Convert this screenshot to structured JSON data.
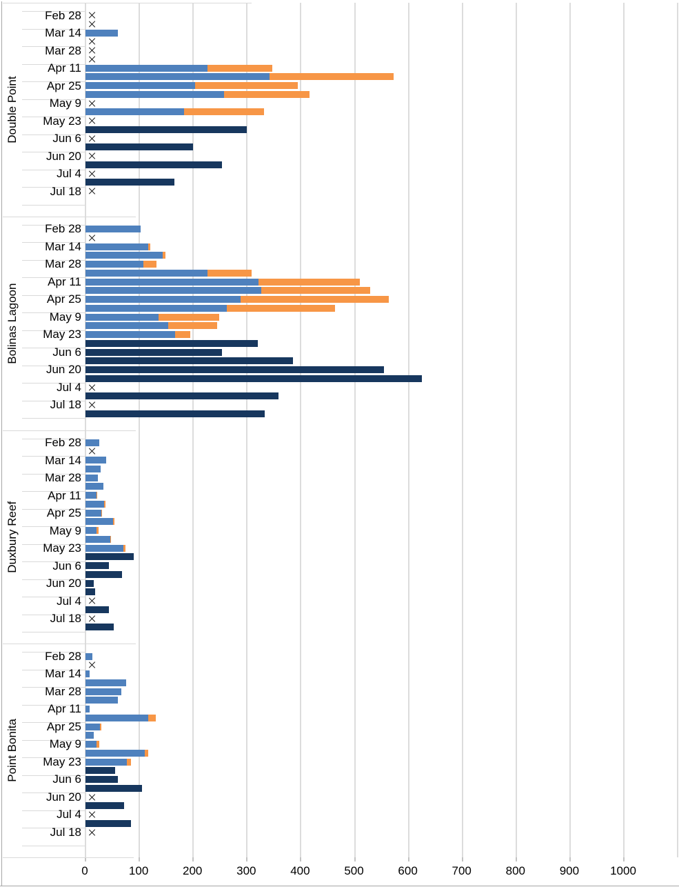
{
  "chart_data": {
    "type": "bar",
    "orientation": "horizontal",
    "stacked": true,
    "title": "",
    "legend": "none",
    "grid": "vertical",
    "x_axis": {
      "min": 0,
      "max": 1100,
      "tick_step": 100,
      "tick_labels": [
        "0",
        "100",
        "200",
        "300",
        "400",
        "500",
        "600",
        "700",
        "800",
        "900",
        "1000"
      ]
    },
    "series": [
      {
        "id": "blue",
        "color": "#4F81BD"
      },
      {
        "id": "orange",
        "color": "#F79646"
      },
      {
        "id": "navy",
        "color": "#17375E"
      }
    ],
    "zero_marker": "x",
    "panels": [
      {
        "site": "Double Point",
        "rows": [
          {
            "date": "Feb 28",
            "bars": [
              {
                "zero": true
              },
              {
                "zero": true
              }
            ]
          },
          {
            "date": "Mar 14",
            "bars": [
              {
                "blue": 60
              },
              {
                "zero": true
              }
            ]
          },
          {
            "date": "Mar 28",
            "bars": [
              {
                "zero": true
              },
              {
                "zero": true
              }
            ]
          },
          {
            "date": "Apr 11",
            "bars": [
              {
                "blue": 227,
                "orange": 120
              },
              {
                "blue": 342,
                "orange": 230
              }
            ]
          },
          {
            "date": "Apr 25",
            "bars": [
              {
                "blue": 203,
                "orange": 192
              },
              {
                "blue": 258,
                "orange": 158
              }
            ]
          },
          {
            "date": "May 9",
            "bars": [
              {
                "zero": true
              },
              {
                "blue": 183,
                "orange": 148
              }
            ]
          },
          {
            "date": "May 23",
            "bars": [
              {
                "zero": true
              },
              {
                "navy": 300
              }
            ]
          },
          {
            "date": "Jun 6",
            "bars": [
              {
                "zero": true
              },
              {
                "navy": 200
              }
            ]
          },
          {
            "date": "Jun 20",
            "bars": [
              {
                "zero": true
              },
              {
                "navy": 253
              }
            ]
          },
          {
            "date": "Jul 4",
            "bars": [
              {
                "zero": true
              },
              {
                "navy": 165
              }
            ]
          },
          {
            "date": "Jul 18",
            "bars": [
              {
                "zero": true
              },
              null
            ]
          }
        ]
      },
      {
        "site": "Bolinas Lagoon",
        "rows": [
          {
            "date": "Feb 28",
            "bars": [
              {
                "blue": 103
              },
              {
                "zero": true
              }
            ]
          },
          {
            "date": "Mar 14",
            "bars": [
              {
                "blue": 116,
                "orange": 4
              },
              {
                "blue": 143,
                "orange": 5
              }
            ]
          },
          {
            "date": "Mar 28",
            "bars": [
              {
                "blue": 107,
                "orange": 25
              },
              {
                "blue": 227,
                "orange": 81
              }
            ]
          },
          {
            "date": "Apr 11",
            "bars": [
              {
                "blue": 321,
                "orange": 188
              },
              {
                "blue": 326,
                "orange": 203
              }
            ]
          },
          {
            "date": "Apr 25",
            "bars": [
              {
                "blue": 288,
                "orange": 275
              },
              {
                "blue": 263,
                "orange": 201
              }
            ]
          },
          {
            "date": "May 9",
            "bars": [
              {
                "blue": 136,
                "orange": 112
              },
              {
                "blue": 154,
                "orange": 91
              }
            ]
          },
          {
            "date": "May 23",
            "bars": [
              {
                "blue": 167,
                "orange": 27
              },
              {
                "navy": 320
              }
            ]
          },
          {
            "date": "Jun 6",
            "bars": [
              {
                "navy": 253
              },
              {
                "navy": 385
              }
            ]
          },
          {
            "date": "Jun 20",
            "bars": [
              {
                "navy": 555
              },
              {
                "navy": 625
              }
            ]
          },
          {
            "date": "Jul 4",
            "bars": [
              {
                "zero": true
              },
              {
                "navy": 358
              }
            ]
          },
          {
            "date": "Jul 18",
            "bars": [
              {
                "zero": true
              },
              {
                "navy": 333
              }
            ]
          }
        ]
      },
      {
        "site": "Duxbury Reef",
        "rows": [
          {
            "date": "Feb 28",
            "bars": [
              {
                "blue": 26
              },
              {
                "zero": true
              }
            ]
          },
          {
            "date": "Mar 14",
            "bars": [
              {
                "blue": 38
              },
              {
                "blue": 28
              }
            ]
          },
          {
            "date": "Mar 28",
            "bars": [
              {
                "blue": 23
              },
              {
                "blue": 33
              }
            ]
          },
          {
            "date": "Apr 11",
            "bars": [
              {
                "blue": 20,
                "orange": 2
              },
              {
                "blue": 34,
                "orange": 3
              }
            ]
          },
          {
            "date": "Apr 25",
            "bars": [
              {
                "blue": 29,
                "orange": 2
              },
              {
                "blue": 51,
                "orange": 3
              }
            ]
          },
          {
            "date": "May 9",
            "bars": [
              {
                "blue": 21,
                "orange": 3
              },
              {
                "blue": 46,
                "orange": 2
              }
            ]
          },
          {
            "date": "May 23",
            "bars": [
              {
                "blue": 71,
                "orange": 3
              },
              {
                "navy": 89
              }
            ]
          },
          {
            "date": "Jun 6",
            "bars": [
              {
                "navy": 43
              },
              {
                "navy": 68
              }
            ]
          },
          {
            "date": "Jun 20",
            "bars": [
              {
                "navy": 15
              },
              {
                "navy": 18
              }
            ]
          },
          {
            "date": "Jul 4",
            "bars": [
              {
                "zero": true
              },
              {
                "navy": 43
              }
            ]
          },
          {
            "date": "Jul 18",
            "bars": [
              {
                "zero": true
              },
              {
                "navy": 52
              }
            ]
          }
        ]
      },
      {
        "site": "Point Bonita",
        "rows": [
          {
            "date": "Feb 28",
            "bars": [
              {
                "blue": 13
              },
              {
                "zero": true
              }
            ]
          },
          {
            "date": "Mar 14",
            "bars": [
              {
                "blue": 8
              },
              {
                "blue": 75
              }
            ]
          },
          {
            "date": "Mar 28",
            "bars": [
              {
                "blue": 66
              },
              {
                "blue": 60
              }
            ]
          },
          {
            "date": "Apr 11",
            "bars": [
              {
                "blue": 8
              },
              {
                "blue": 117,
                "orange": 13
              }
            ]
          },
          {
            "date": "Apr 25",
            "bars": [
              {
                "blue": 27,
                "orange": 2
              },
              {
                "blue": 15
              }
            ]
          },
          {
            "date": "May 9",
            "bars": [
              {
                "blue": 21,
                "orange": 4
              },
              {
                "blue": 110,
                "orange": 6
              }
            ]
          },
          {
            "date": "May 23",
            "bars": [
              {
                "blue": 77,
                "orange": 7
              },
              {
                "navy": 55
              }
            ]
          },
          {
            "date": "Jun 6",
            "bars": [
              {
                "navy": 60
              },
              {
                "navy": 105
              }
            ]
          },
          {
            "date": "Jun 20",
            "bars": [
              {
                "zero": true
              },
              {
                "navy": 72
              }
            ]
          },
          {
            "date": "Jul 4",
            "bars": [
              {
                "zero": true
              },
              {
                "navy": 85
              }
            ]
          },
          {
            "date": "Jul 18",
            "bars": [
              {
                "zero": true
              },
              null
            ]
          }
        ]
      }
    ],
    "colors": {
      "gridline": "#dcdcdc",
      "separator": "#d9d9d9",
      "axis_text": "#000000",
      "marker": "#1c1c1c",
      "border": "#a6a6a6"
    }
  }
}
